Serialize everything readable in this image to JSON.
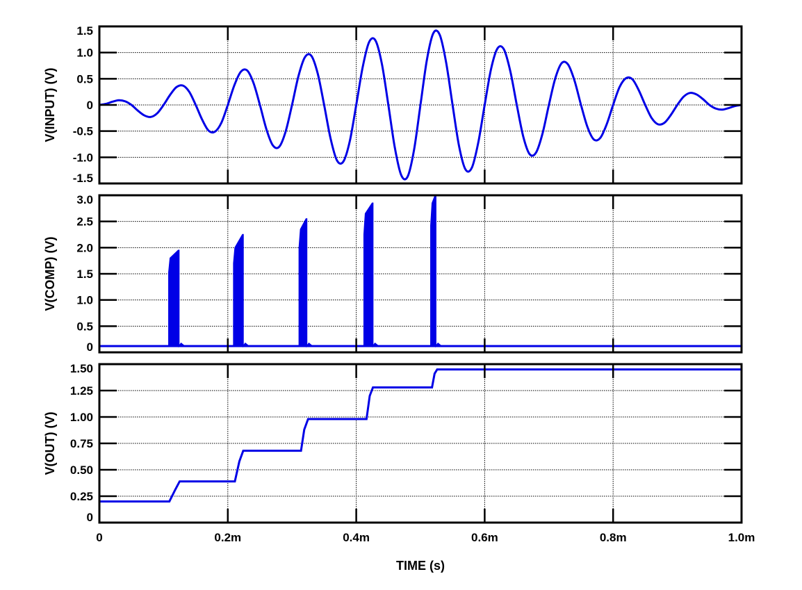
{
  "chart_data": [
    {
      "type": "line",
      "ylabel": "V(INPUT)  (V)",
      "xlabel": "TIME  (s)",
      "xlim": [
        0,
        1.0
      ],
      "x_unit": "ms",
      "ylim": [
        -1.5,
        1.5
      ],
      "grid": true,
      "x_ticks": [
        "0",
        "0.2m",
        "0.4m",
        "0.6m",
        "0.8m",
        "1.0m"
      ],
      "y_ticks": [
        "1.5",
        "1.0",
        "0.5",
        "0",
        "-0.5",
        "-1.0",
        "-1.5"
      ],
      "y_tick_values": [
        1.5,
        1.0,
        0.5,
        0,
        -0.5,
        -1.0,
        -1.5
      ],
      "color": "#0000e6",
      "x_step": 0.01,
      "values": [
        0,
        0.02,
        0.06,
        0.09,
        0.07,
        0,
        -0.11,
        -0.2,
        -0.23,
        -0.16,
        0,
        0.19,
        0.34,
        0.37,
        0.25,
        0,
        -0.28,
        -0.49,
        -0.51,
        -0.34,
        0,
        0.37,
        0.63,
        0.66,
        0.42,
        0,
        -0.46,
        -0.77,
        -0.8,
        -0.51,
        0,
        0.55,
        0.91,
        0.94,
        0.6,
        0,
        -0.64,
        -1.06,
        -1.08,
        -0.69,
        0,
        0.72,
        1.2,
        1.23,
        0.78,
        0,
        -0.81,
        -1.34,
        -1.37,
        -0.86,
        0,
        0.86,
        1.37,
        1.34,
        0.81,
        0,
        -0.78,
        -1.23,
        -1.2,
        -0.72,
        0,
        0.69,
        1.08,
        1.06,
        0.64,
        0,
        -0.6,
        -0.94,
        -0.91,
        -0.55,
        0,
        0.51,
        0.8,
        0.77,
        0.46,
        0,
        -0.42,
        -0.66,
        -0.63,
        -0.37,
        0,
        0.34,
        0.51,
        0.49,
        0.28,
        0,
        -0.25,
        -0.37,
        -0.34,
        -0.19,
        0,
        0.16,
        0.23,
        0.2,
        0.11,
        0,
        -0.07,
        -0.09,
        -0.06,
        -0.02,
        0
      ]
    },
    {
      "type": "line",
      "ylabel": "V(COMP)  (V)",
      "xlim": [
        0,
        1.0
      ],
      "x_unit": "ms",
      "ylim": [
        0,
        3.0
      ],
      "grid": true,
      "y_ticks": [
        "3.0",
        "2.5",
        "2.0",
        "1.5",
        "1.0",
        "0.5",
        "0"
      ],
      "y_tick_values": [
        3.0,
        2.5,
        2.0,
        1.5,
        1.0,
        0.5,
        0
      ],
      "color": "#0000e6",
      "baseline": 0.12,
      "bursts": [
        {
          "start": 0.108,
          "end": 0.124,
          "start_level": 1.8,
          "peak": 1.95
        },
        {
          "start": 0.209,
          "end": 0.224,
          "start_level": 2.0,
          "peak": 2.25
        },
        {
          "start": 0.311,
          "end": 0.323,
          "start_level": 2.35,
          "peak": 2.55
        },
        {
          "start": 0.412,
          "end": 0.426,
          "start_level": 2.65,
          "peak": 2.85
        },
        {
          "start": 0.516,
          "end": 0.524,
          "start_level": 2.85,
          "peak": 3.0
        }
      ]
    },
    {
      "type": "line",
      "ylabel": "V(OUT)  (V)",
      "xlim": [
        0,
        1.0
      ],
      "x_unit": "ms",
      "ylim": [
        0,
        1.5
      ],
      "grid": true,
      "y_ticks": [
        "1.50",
        "1.25",
        "1.00",
        "0.75",
        "0.50",
        "0.25",
        "0"
      ],
      "y_tick_values": [
        1.5,
        1.25,
        1.0,
        0.75,
        0.5,
        0.25,
        0
      ],
      "color": "#0000e6",
      "x": [
        0,
        0.109,
        0.118,
        0.125,
        0.211,
        0.218,
        0.224,
        0.314,
        0.319,
        0.325,
        0.416,
        0.421,
        0.426,
        0.518,
        0.522,
        0.526,
        1.0
      ],
      "values": [
        0.2,
        0.2,
        0.31,
        0.39,
        0.39,
        0.58,
        0.68,
        0.68,
        0.88,
        0.98,
        0.98,
        1.2,
        1.28,
        1.28,
        1.41,
        1.45,
        1.45
      ]
    }
  ]
}
